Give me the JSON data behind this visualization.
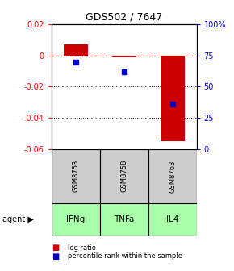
{
  "title": "GDS502 / 7647",
  "samples": [
    "GSM8753",
    "GSM8758",
    "GSM8763"
  ],
  "agents": [
    "IFNg",
    "TNFa",
    "IL4"
  ],
  "log_ratios": [
    0.007,
    -0.001,
    -0.055
  ],
  "percentile_ranks": [
    0.7,
    0.62,
    0.36
  ],
  "ylim_left": [
    -0.06,
    0.02
  ],
  "ylim_right": [
    0.0,
    1.0
  ],
  "yticks_left": [
    0.02,
    0.0,
    -0.02,
    -0.04,
    -0.06
  ],
  "ytick_left_labels": [
    "0.02",
    "0",
    "-0.02",
    "-0.04",
    "-0.06"
  ],
  "yticks_right": [
    1.0,
    0.75,
    0.5,
    0.25,
    0.0
  ],
  "ytick_right_labels": [
    "100%",
    "75",
    "50",
    "25",
    "0"
  ],
  "bar_color": "#cc0000",
  "square_color": "#0000cc",
  "agent_bg_color": "#aaffaa",
  "sample_bg_color": "#cccccc",
  "zero_line_color": "#cc0000",
  "grid_color": "#000000",
  "bar_width": 0.5,
  "legend_labels": [
    "log ratio",
    "percentile rank within the sample"
  ]
}
